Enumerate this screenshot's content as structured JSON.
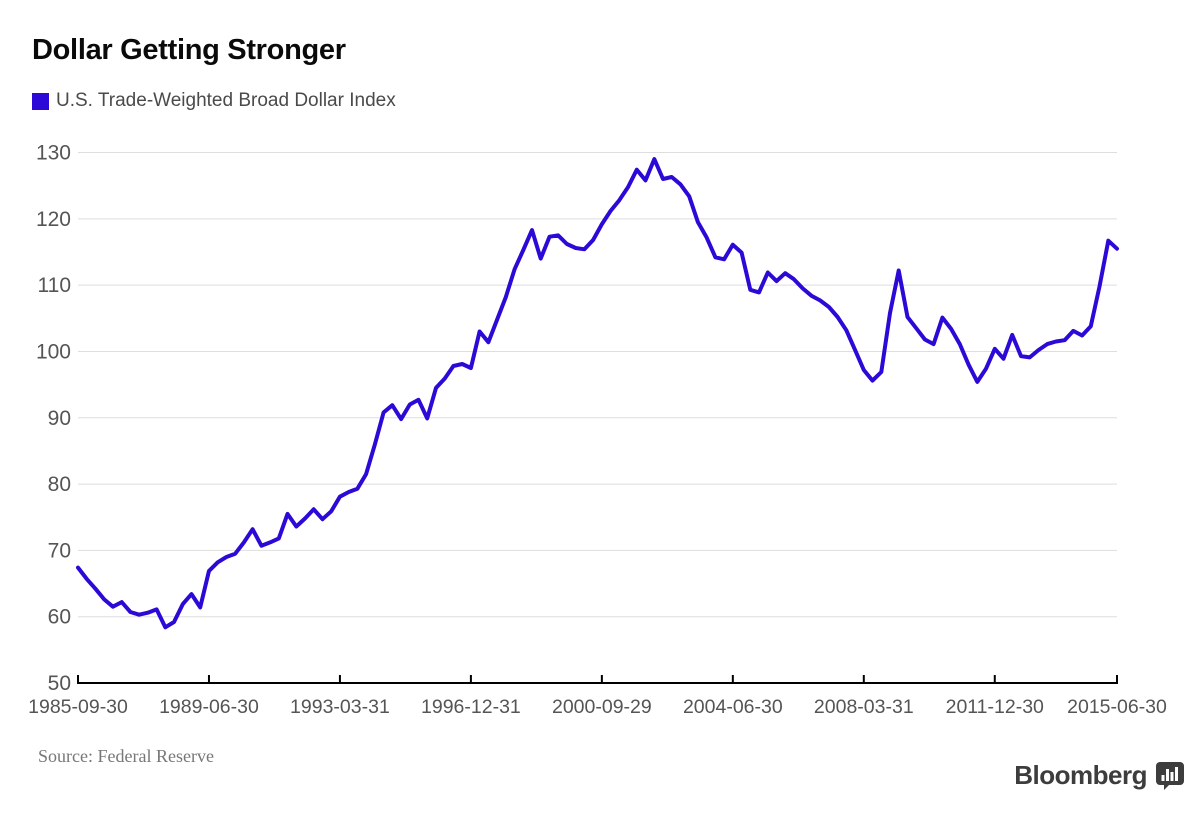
{
  "header": {
    "title": "Dollar Getting Stronger",
    "legend_label": "U.S. Trade-Weighted Broad Dollar Index"
  },
  "footer": {
    "source": "Source: Federal Reserve",
    "brand": "Bloomberg",
    "brand_icon": "bloomberg-chart-bubble-icon"
  },
  "colors": {
    "series": "#2c09d6",
    "grid": "#dedede",
    "axis": "#000000",
    "tick_label": "#555555",
    "title": "#0a0a0a",
    "legend_text": "#4a4a4a",
    "source_text": "#777777",
    "brand": "#3d3d3d"
  },
  "chart_data": {
    "type": "line",
    "title": "Dollar Getting Stronger",
    "series_name": "U.S. Trade-Weighted Broad Dollar Index",
    "xlabel": "",
    "ylabel": "",
    "grid": true,
    "legend_position": "top-left",
    "ylim": [
      50,
      130
    ],
    "y_ticks": [
      50,
      60,
      70,
      80,
      90,
      100,
      110,
      120,
      130
    ],
    "x_tick_labels": [
      "1985-09-30",
      "1989-06-30",
      "1993-03-31",
      "1996-12-31",
      "2000-09-29",
      "2004-06-30",
      "2008-03-31",
      "2011-12-30",
      "2015-06-30"
    ],
    "x_tick_indices": [
      0,
      15,
      30,
      45,
      60,
      75,
      90,
      105,
      119
    ],
    "x_start": "1985-09-30",
    "x_end": "2015-06-30",
    "values": [
      67.4,
      65.7,
      64.2,
      62.6,
      61.5,
      62.2,
      60.7,
      60.3,
      60.6,
      61.1,
      58.4,
      59.2,
      61.9,
      63.4,
      61.4,
      66.9,
      68.2,
      69.0,
      69.5,
      71.2,
      73.2,
      70.7,
      71.2,
      71.8,
      75.5,
      73.6,
      74.8,
      76.2,
      74.7,
      75.9,
      78.1,
      78.8,
      79.3,
      81.5,
      86.0,
      90.8,
      91.9,
      89.8,
      92.0,
      92.7,
      89.9,
      94.5,
      95.9,
      97.8,
      98.1,
      97.5,
      103.0,
      101.4,
      104.8,
      108.2,
      112.4,
      115.3,
      118.3,
      114.0,
      117.3,
      117.5,
      116.2,
      115.6,
      115.4,
      116.8,
      119.2,
      121.2,
      122.8,
      124.8,
      127.4,
      125.8,
      129.0,
      126.0,
      126.3,
      125.2,
      123.4,
      119.5,
      117.2,
      114.2,
      113.9,
      116.1,
      114.9,
      109.3,
      108.9,
      111.9,
      110.6,
      111.8,
      110.9,
      109.5,
      108.4,
      107.7,
      106.7,
      105.2,
      103.2,
      100.2,
      97.2,
      95.6,
      96.9,
      105.8,
      112.2,
      105.2,
      103.5,
      101.8,
      101.1,
      105.1,
      103.4,
      101.1,
      98.0,
      95.4,
      97.4,
      100.4,
      98.9,
      102.5,
      99.3,
      99.1,
      100.2,
      101.1,
      101.5,
      101.7,
      103.1,
      102.4,
      103.8,
      109.8,
      116.7,
      115.5
    ]
  }
}
